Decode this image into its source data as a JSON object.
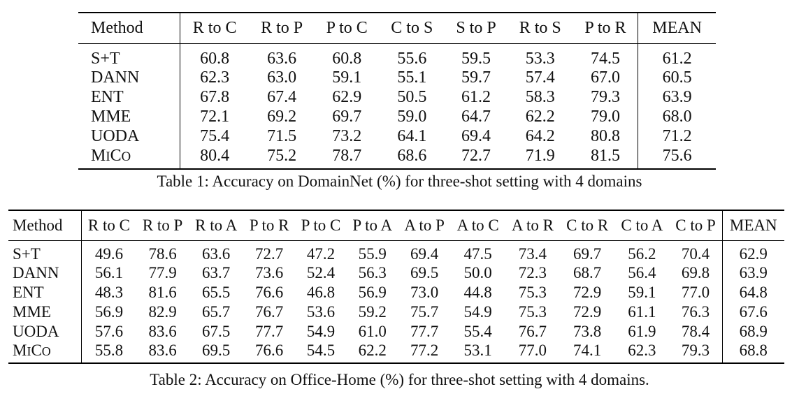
{
  "table1": {
    "headers": [
      "Method",
      "R to C",
      "R to P",
      "P to C",
      "C to S",
      "S to P",
      "R to S",
      "P to R",
      "MEAN"
    ],
    "rows": [
      {
        "method": "S+T",
        "values": [
          "60.8",
          "63.6",
          "60.8",
          "55.6",
          "59.5",
          "53.3",
          "74.5",
          "61.2"
        ],
        "bold": [
          false,
          false,
          false,
          false,
          false,
          false,
          false,
          false
        ]
      },
      {
        "method": "DANN",
        "values": [
          "62.3",
          "63.0",
          "59.1",
          "55.1",
          "59.7",
          "57.4",
          "67.0",
          "60.5"
        ],
        "bold": [
          false,
          false,
          false,
          false,
          false,
          false,
          false,
          false
        ]
      },
      {
        "method": "ENT",
        "values": [
          "67.8",
          "67.4",
          "62.9",
          "50.5",
          "61.2",
          "58.3",
          "79.3",
          "63.9"
        ],
        "bold": [
          false,
          false,
          false,
          false,
          false,
          false,
          false,
          false
        ]
      },
      {
        "method": "MME",
        "values": [
          "72.1",
          "69.2",
          "69.7",
          "59.0",
          "64.7",
          "62.2",
          "79.0",
          "68.0"
        ],
        "bold": [
          false,
          false,
          false,
          false,
          false,
          false,
          false,
          false
        ]
      },
      {
        "method": "UODA",
        "values": [
          "75.4",
          "71.5",
          "73.2",
          "64.1",
          "69.4",
          "64.2",
          "80.8",
          "71.2"
        ],
        "bold": [
          false,
          false,
          false,
          false,
          false,
          false,
          false,
          false
        ]
      },
      {
        "method": "MICO",
        "smallcaps": true,
        "methodBold": true,
        "values": [
          "80.4",
          "75.2",
          "78.7",
          "68.6",
          "72.7",
          "71.9",
          "81.5",
          "75.6"
        ],
        "bold": [
          true,
          true,
          true,
          true,
          true,
          true,
          true,
          true
        ]
      }
    ],
    "caption": "Table 1: Accuracy on DomainNet (%) for three-shot setting with 4 domains"
  },
  "table2": {
    "headers": [
      "Method",
      "R to C",
      "R to P",
      "R to A",
      "P to R",
      "P to C",
      "P to A",
      "A to P",
      "A to C",
      "A to R",
      "C to R",
      "C to A",
      "C to P",
      "MEAN"
    ],
    "rows": [
      {
        "method": "S+T",
        "values": [
          "49.6",
          "78.6",
          "63.6",
          "72.7",
          "47.2",
          "55.9",
          "69.4",
          "47.5",
          "73.4",
          "69.7",
          "56.2",
          "70.4",
          "62.9"
        ],
        "bold": [
          false,
          false,
          false,
          false,
          false,
          false,
          false,
          false,
          false,
          false,
          false,
          false,
          false
        ]
      },
      {
        "method": "DANN",
        "values": [
          "56.1",
          "77.9",
          "63.7",
          "73.6",
          "52.4",
          "56.3",
          "69.5",
          "50.0",
          "72.3",
          "68.7",
          "56.4",
          "69.8",
          "63.9"
        ],
        "bold": [
          false,
          false,
          false,
          false,
          false,
          false,
          false,
          false,
          false,
          false,
          false,
          false,
          false
        ]
      },
      {
        "method": "ENT",
        "values": [
          "48.3",
          "81.6",
          "65.5",
          "76.6",
          "46.8",
          "56.9",
          "73.0",
          "44.8",
          "75.3",
          "72.9",
          "59.1",
          "77.0",
          "64.8"
        ],
        "bold": [
          false,
          false,
          false,
          false,
          false,
          false,
          false,
          false,
          false,
          false,
          false,
          false,
          false
        ]
      },
      {
        "method": "MME",
        "values": [
          "56.9",
          "82.9",
          "65.7",
          "76.7",
          "53.6",
          "59.2",
          "75.7",
          "54.9",
          "75.3",
          "72.9",
          "61.1",
          "76.3",
          "67.6"
        ],
        "bold": [
          false,
          false,
          false,
          false,
          false,
          false,
          false,
          false,
          false,
          false,
          false,
          false,
          false
        ]
      },
      {
        "method": "UODA",
        "values": [
          "57.6",
          "83.6",
          "67.5",
          "77.7",
          "54.9",
          "61.0",
          "77.7",
          "55.4",
          "76.7",
          "73.8",
          "61.9",
          "78.4",
          "68.9"
        ],
        "bold": [
          true,
          true,
          false,
          true,
          true,
          false,
          true,
          true,
          false,
          false,
          false,
          false,
          true
        ]
      },
      {
        "method": "MICO",
        "smallcaps": true,
        "methodBold": true,
        "values": [
          "55.8",
          "83.6",
          "69.5",
          "76.6",
          "54.5",
          "62.2",
          "77.2",
          "53.1",
          "77.0",
          "74.1",
          "62.3",
          "79.3",
          "68.8"
        ],
        "bold": [
          false,
          true,
          true,
          false,
          false,
          true,
          false,
          false,
          true,
          true,
          true,
          true,
          false
        ]
      }
    ],
    "caption": "Table 2: Accuracy on Office-Home (%) for three-shot setting with 4 domains."
  }
}
